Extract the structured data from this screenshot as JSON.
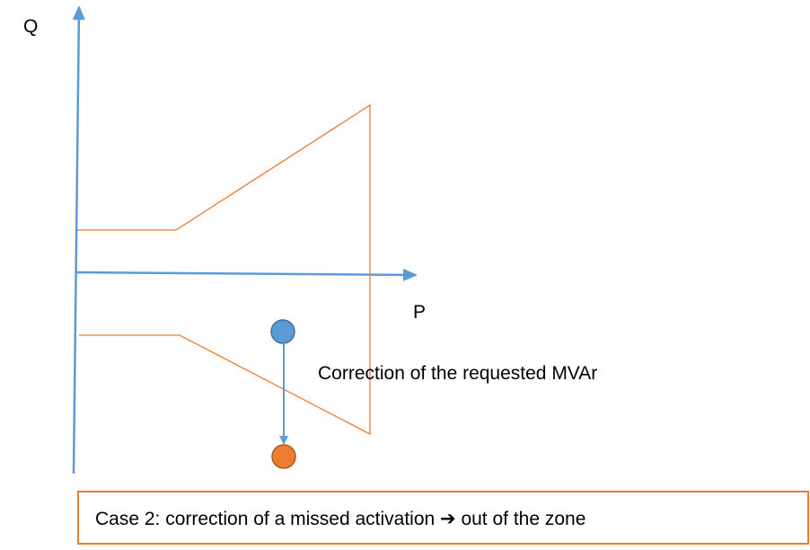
{
  "axes": {
    "y_label": "Q",
    "x_label": "P"
  },
  "annotation": "Correction of the requested MVAr",
  "caption": "Case 2: correction of a missed activation ➔ out of the zone"
}
